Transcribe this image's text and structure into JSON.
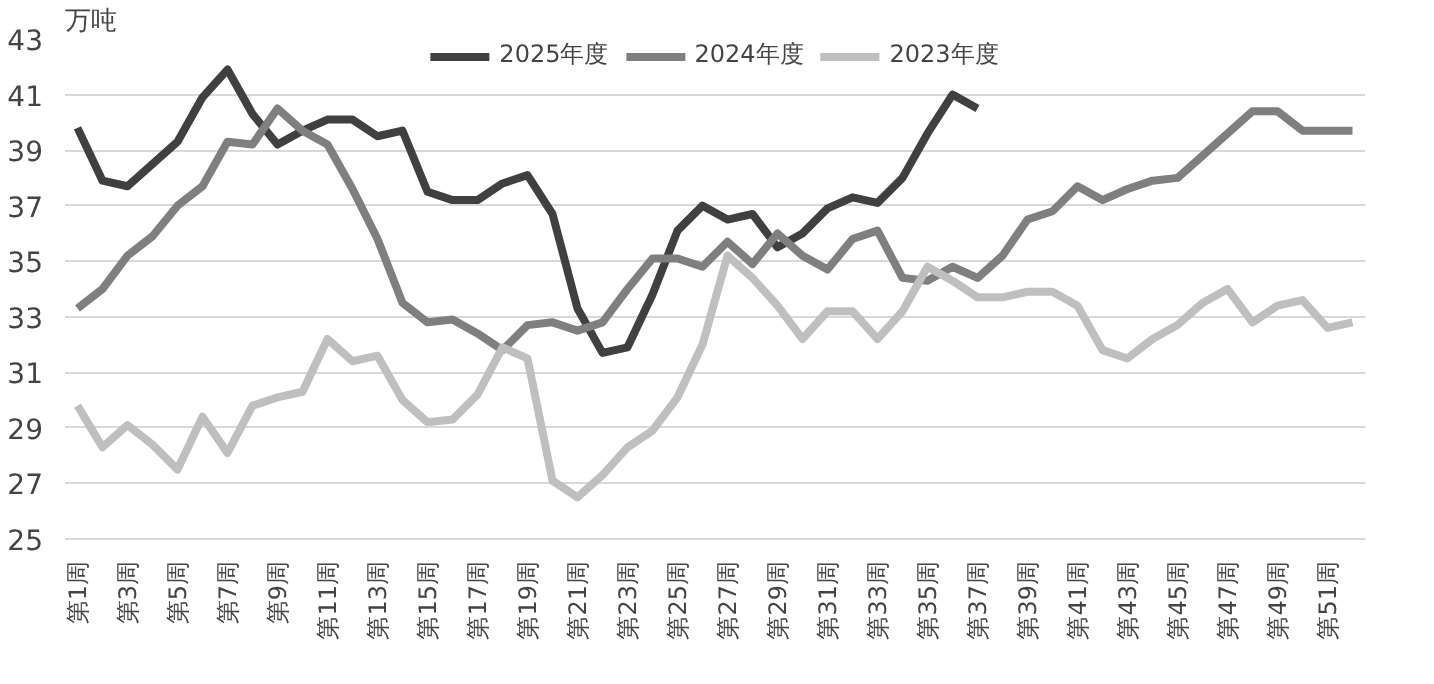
{
  "chart_data": {
    "type": "line",
    "ylabel": "万吨",
    "categories": [
      "第1周",
      null,
      "第3周",
      null,
      "第5周",
      null,
      "第7周",
      null,
      "第9周",
      null,
      "第11周",
      null,
      "第13周",
      null,
      "第15周",
      null,
      "第17周",
      null,
      "第19周",
      null,
      "第21周",
      null,
      "第23周",
      null,
      "第25周",
      null,
      "第27周",
      null,
      "第29周",
      null,
      "第31周",
      null,
      "第33周",
      null,
      "第35周",
      null,
      "第37周",
      null,
      "第39周",
      null,
      "第41周",
      null,
      "第43周",
      null,
      "第45周",
      null,
      "第47周",
      null,
      "第49周",
      null,
      "第51周",
      null
    ],
    "series": [
      {
        "name": "2025年度",
        "color": "#404040",
        "values": [
          39.8,
          37.9,
          37.7,
          38.5,
          39.3,
          40.9,
          41.9,
          40.3,
          39.2,
          39.7,
          40.1,
          40.1,
          39.5,
          39.7,
          37.5,
          37.2,
          37.2,
          37.8,
          38.1,
          36.7,
          33.3,
          31.7,
          31.9,
          33.8,
          36.1,
          37.0,
          36.5,
          36.7,
          35.5,
          36.0,
          36.9,
          37.3,
          37.1,
          38.0,
          39.6,
          41.0,
          40.5,
          null,
          null,
          null,
          null,
          null,
          null,
          null,
          null,
          null,
          null,
          null,
          null,
          null,
          null,
          null
        ]
      },
      {
        "name": "2024年度",
        "color": "#7f7f7f",
        "values": [
          33.3,
          34.0,
          35.2,
          35.9,
          37.0,
          37.7,
          39.3,
          39.2,
          40.5,
          39.7,
          39.2,
          37.6,
          35.8,
          33.5,
          32.8,
          32.9,
          32.4,
          31.8,
          32.7,
          32.8,
          32.5,
          32.8,
          34.0,
          35.1,
          35.1,
          34.8,
          35.7,
          34.9,
          36.0,
          35.2,
          34.7,
          35.8,
          36.1,
          34.4,
          34.3,
          34.8,
          34.4,
          35.2,
          36.5,
          36.8,
          37.7,
          37.2,
          37.6,
          37.9,
          38.0,
          38.8,
          39.6,
          40.4,
          40.4,
          39.7,
          39.7,
          39.7
        ]
      },
      {
        "name": "2023年度",
        "color": "#bfbfbf",
        "values": [
          29.8,
          28.3,
          29.1,
          28.4,
          27.5,
          29.4,
          28.1,
          29.8,
          30.1,
          30.3,
          32.2,
          31.4,
          31.6,
          30.0,
          29.2,
          29.3,
          30.2,
          31.9,
          31.5,
          27.1,
          26.5,
          27.3,
          28.3,
          28.9,
          30.1,
          32.0,
          35.2,
          34.4,
          33.4,
          32.2,
          33.2,
          33.2,
          32.2,
          33.2,
          34.8,
          34.3,
          33.7,
          33.7,
          33.9,
          33.9,
          33.4,
          31.8,
          31.5,
          32.2,
          32.7,
          33.5,
          34.0,
          32.8,
          33.4,
          33.6,
          32.6,
          32.8
        ]
      }
    ],
    "ylim": [
      25,
      43
    ],
    "yticks": [
      25,
      27,
      29,
      31,
      33,
      35,
      37,
      39,
      41,
      43
    ],
    "grid": "y",
    "legend": "top",
    "line_style": "solid",
    "marker": "none"
  }
}
